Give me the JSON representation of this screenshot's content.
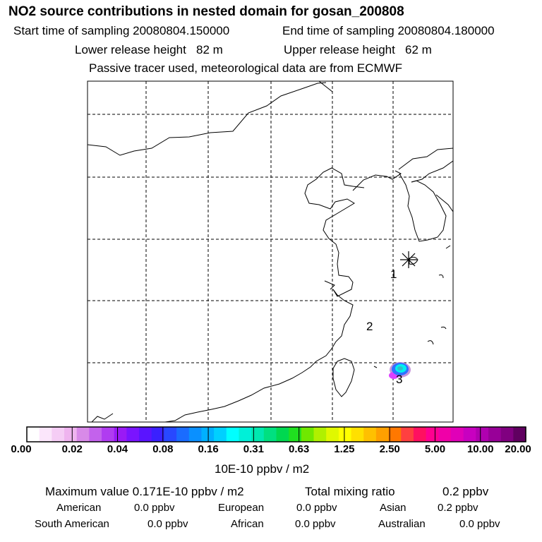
{
  "header": {
    "title": "NO2 source contributions in nested domain for gosan_200808",
    "start_label": "Start time of sampling 20080804.150000",
    "end_label": "End time of sampling 20080804.180000",
    "lower_label": "Lower release height   82 m",
    "upper_label": "Upper release height   62 m",
    "note": "Passive tracer used, meteorological data are from ECMWF"
  },
  "map": {
    "source_labels": [
      "1",
      "2",
      "3"
    ],
    "receptor_marker": "star-icon"
  },
  "colorbar": {
    "tick_labels": [
      "0.00",
      "0.02",
      "0.04",
      "0.08",
      "0.16",
      "0.31",
      "0.63",
      "1.25",
      "2.50",
      "5.00",
      "10.00",
      "20.00"
    ],
    "colors": [
      "#ffffff",
      "#fbe6fb",
      "#f5cdf5",
      "#efb4ef",
      "#d88ae8",
      "#c362ec",
      "#b03cf0",
      "#9a1af5",
      "#7a14ff",
      "#5a14ff",
      "#3a20ff",
      "#2848ff",
      "#1a6cff",
      "#0a90ff",
      "#00b0ff",
      "#00d0ff",
      "#00ffff",
      "#00f0d8",
      "#00e8b0",
      "#00e080",
      "#00d850",
      "#20e020",
      "#70e800",
      "#b0f000",
      "#e0f800",
      "#ffff00",
      "#ffe000",
      "#ffc000",
      "#ffa000",
      "#ff7800",
      "#ff4040",
      "#ff1060",
      "#ff0090",
      "#f000a8",
      "#e000b8",
      "#c800c0",
      "#b000b0",
      "#980098",
      "#800080",
      "#600060"
    ],
    "unit": "10E-10 ppbv / m2"
  },
  "summary": {
    "max_label": "Maximum value  0.171E-10 ppbv / m2",
    "total_label": "Total mixing ratio",
    "total_value": "0.2 ppbv",
    "regions": [
      {
        "name": "American",
        "value": "0.0 ppbv"
      },
      {
        "name": "European",
        "value": "0.0 ppbv"
      },
      {
        "name": "Asian",
        "value": "0.2 ppbv"
      },
      {
        "name": "South American",
        "value": "0.0 ppbv"
      },
      {
        "name": "African",
        "value": "0.0 ppbv"
      },
      {
        "name": "Australian",
        "value": "0.0 ppbv"
      }
    ]
  }
}
